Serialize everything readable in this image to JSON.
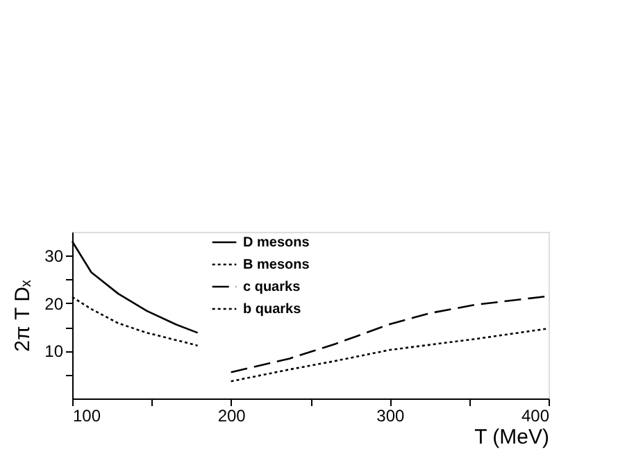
{
  "chart_data": {
    "type": "line",
    "xlabel": "T (MeV)",
    "ylabel": "2π T Dₓ",
    "xlim": [
      100,
      400
    ],
    "ylim": [
      0,
      35
    ],
    "xticks": [
      100,
      {
        "value": 150,
        "label": null
      },
      200,
      {
        "value": 250,
        "label": null
      },
      300,
      {
        "value": 350,
        "label": null
      },
      400
    ],
    "yticks": [
      {
        "value": 5,
        "label": null
      },
      10,
      {
        "value": 15,
        "label": null
      },
      20,
      {
        "value": 25,
        "label": null
      },
      30
    ],
    "grid": false,
    "legend": "top",
    "marker": "none",
    "series": [
      {
        "name": "D mesons",
        "color": "#000000",
        "line_style": "solid",
        "x": [
          100,
          112,
          129,
          147,
          165,
          179
        ],
        "values": [
          33,
          26.5,
          22,
          18.4,
          15.6,
          13.8
        ]
      },
      {
        "name": "B mesons",
        "color": "#000000",
        "line_style": "dotted",
        "x": [
          100,
          112,
          129,
          147,
          165,
          179
        ],
        "values": [
          21.3,
          18.8,
          15.8,
          13.8,
          12.3,
          11.1
        ]
      },
      {
        "name": "c quarks",
        "color": "#000000",
        "line_style": "dashed",
        "x": [
          200,
          237,
          266,
          300,
          325,
          354,
          400
        ],
        "values": [
          5.5,
          8.4,
          11.5,
          15.6,
          17.9,
          19.7,
          21.5
        ]
      },
      {
        "name": "b quarks",
        "color": "#000000",
        "line_style": "dotted",
        "x": [
          200,
          237,
          266,
          300,
          354,
          400
        ],
        "values": [
          3.6,
          6.1,
          7.9,
          10.2,
          12.5,
          14.7
        ]
      }
    ]
  }
}
